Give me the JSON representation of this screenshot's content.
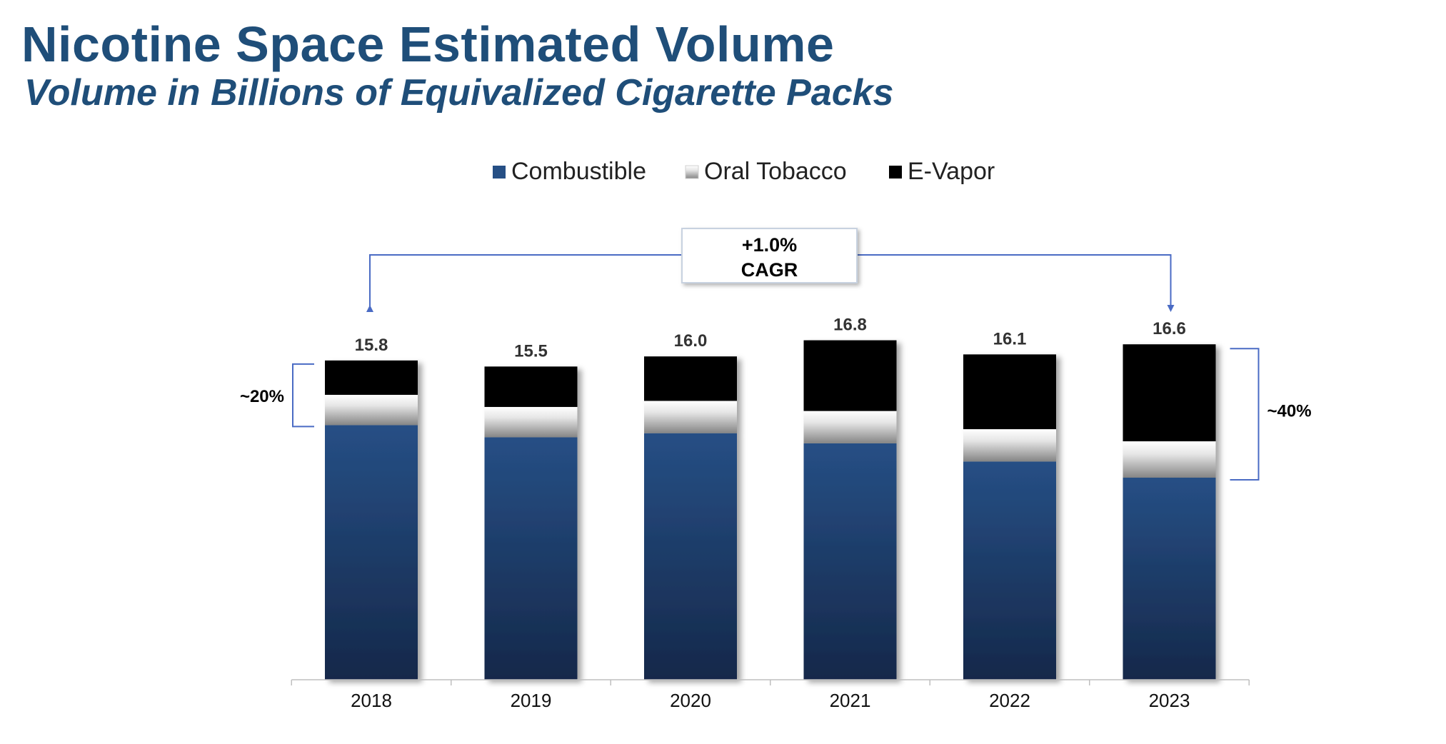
{
  "header": {
    "title": "Nicotine Space Estimated Volume",
    "subtitle": "Volume in Billions of Equivalized Cigarette Packs"
  },
  "colors": {
    "combustible_top": "#264f85",
    "combustible_bottom": "#15284a",
    "oral_light": "#ffffff",
    "oral_dark": "#858585",
    "evapor": "#000000",
    "accent_line": "#4a6bc4",
    "axis": "#bfbfbf",
    "label": "#333333"
  },
  "chart_data": {
    "type": "bar",
    "stacked": true,
    "categories": [
      "2018",
      "2019",
      "2020",
      "2021",
      "2022",
      "2023"
    ],
    "series": [
      {
        "name": "Combustible",
        "values": [
          12.6,
          12.0,
          12.2,
          11.7,
          10.8,
          10.0
        ]
      },
      {
        "name": "Oral Tobacco",
        "values": [
          1.5,
          1.5,
          1.6,
          1.6,
          1.6,
          1.8
        ]
      },
      {
        "name": "E-Vapor",
        "values": [
          1.7,
          2.0,
          2.2,
          3.5,
          3.7,
          4.8
        ]
      }
    ],
    "totals": [
      "15.8",
      "15.5",
      "16.0",
      "16.8",
      "16.1",
      "16.6"
    ],
    "legend_position": "top",
    "ylim": [
      0,
      17.5
    ],
    "grid": false,
    "annotations": {
      "cagr": {
        "line1": "+1.0%",
        "line2": "CAGR",
        "from": "2018",
        "to": "2023"
      },
      "left_bracket": {
        "label": "~20%",
        "category": "2018"
      },
      "right_bracket": {
        "label": "~40%",
        "category": "2023"
      }
    }
  }
}
